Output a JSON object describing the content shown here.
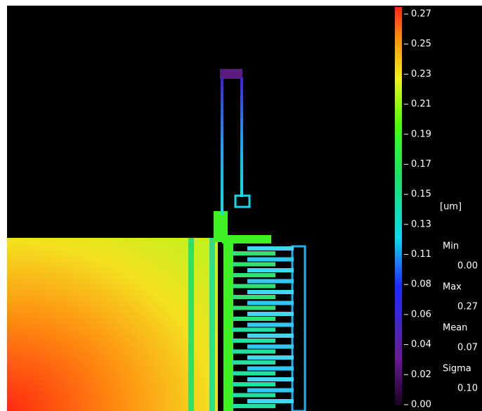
{
  "colorbar": {
    "unit": "[um]",
    "ticks": [
      "0.27",
      "0.25",
      "0.23",
      "0.21",
      "0.19",
      "0.17",
      "0.15",
      "0.13",
      "0.11",
      "0.08",
      "0.06",
      "0.04",
      "0.02",
      "0.00"
    ]
  },
  "stats": [
    {
      "label": "Min",
      "value": "0.00"
    },
    {
      "label": "Max",
      "value": "0.27"
    },
    {
      "label": "Mean",
      "value": "0.07"
    },
    {
      "label": "Sigma",
      "value": "0.10"
    }
  ]
}
